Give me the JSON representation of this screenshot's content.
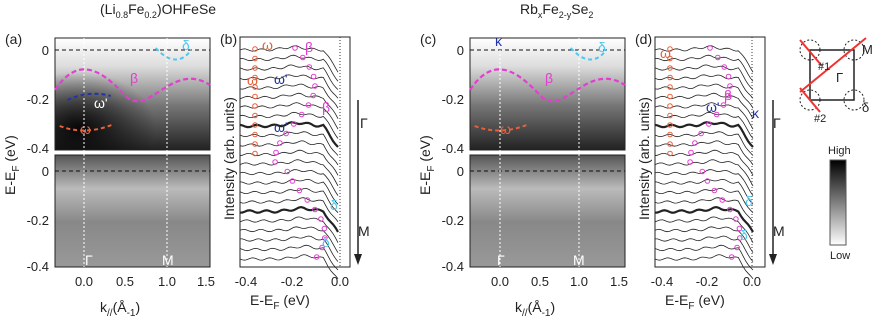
{
  "titles": {
    "left": [
      "(Li",
      "0.8",
      "Fe",
      "0.2",
      ")OHFeSe"
    ],
    "right": [
      "Rb",
      "x",
      "Fe",
      "2-y",
      "Se",
      "2"
    ]
  },
  "panel_a": {
    "label": "(a)",
    "y_label": [
      "E-E",
      "F",
      " (eV)"
    ],
    "y_ticks_top": [
      "0",
      "-0.2",
      "-0.4"
    ],
    "y_ticks_bottom": [
      "0",
      "-0.2",
      "-0.4"
    ],
    "x_ticks": [
      "0.0",
      "0.5",
      "1.0",
      "1.5"
    ],
    "x_label": [
      "k",
      "//",
      "(Å",
      "-1",
      ")"
    ],
    "annotations": [
      "δ",
      "β",
      "ω'",
      "ω",
      "Γ",
      "M"
    ]
  },
  "panel_b": {
    "label": "(b)",
    "y_label": "Intensity (arb. units)",
    "x_ticks": [
      "-0.4",
      "-0.2",
      "0.0"
    ],
    "x_label": [
      "E-E",
      "F",
      " (eV)"
    ],
    "annotations": [
      "ω",
      "β",
      "ω",
      "β",
      "ω'",
      "ω'",
      "δ",
      "δ",
      "Γ",
      "M"
    ]
  },
  "panel_c": {
    "label": "(c)",
    "y_label": [
      "E-E",
      "F",
      " (eV)"
    ],
    "y_ticks_top": [
      "0",
      "-0.2",
      "-0.4"
    ],
    "y_ticks_bottom": [
      "0",
      "-0.2",
      "-0.4"
    ],
    "x_ticks": [
      "0.0",
      "0.5",
      "1.0",
      "1.5"
    ],
    "x_label": [
      "k",
      "//",
      "(Å",
      "-1",
      ")"
    ],
    "annotations": [
      "κ",
      "δ",
      "β",
      "ω",
      "Γ",
      "M"
    ]
  },
  "panel_d": {
    "label": "(d)",
    "y_label": "Intensity (arb. units)",
    "x_ticks": [
      "-0.4",
      "-0.2",
      "0.0"
    ],
    "x_label": [
      "E-E",
      "F",
      " (eV)"
    ],
    "annotations": [
      "ω",
      "β",
      "ω'",
      "κ",
      "δ",
      "δ",
      "Γ",
      "M"
    ]
  },
  "bz": {
    "labels": [
      "M",
      "Γ",
      "δ",
      "#1",
      "#2"
    ]
  },
  "colorbar": {
    "high": "High",
    "low": "Low"
  }
}
